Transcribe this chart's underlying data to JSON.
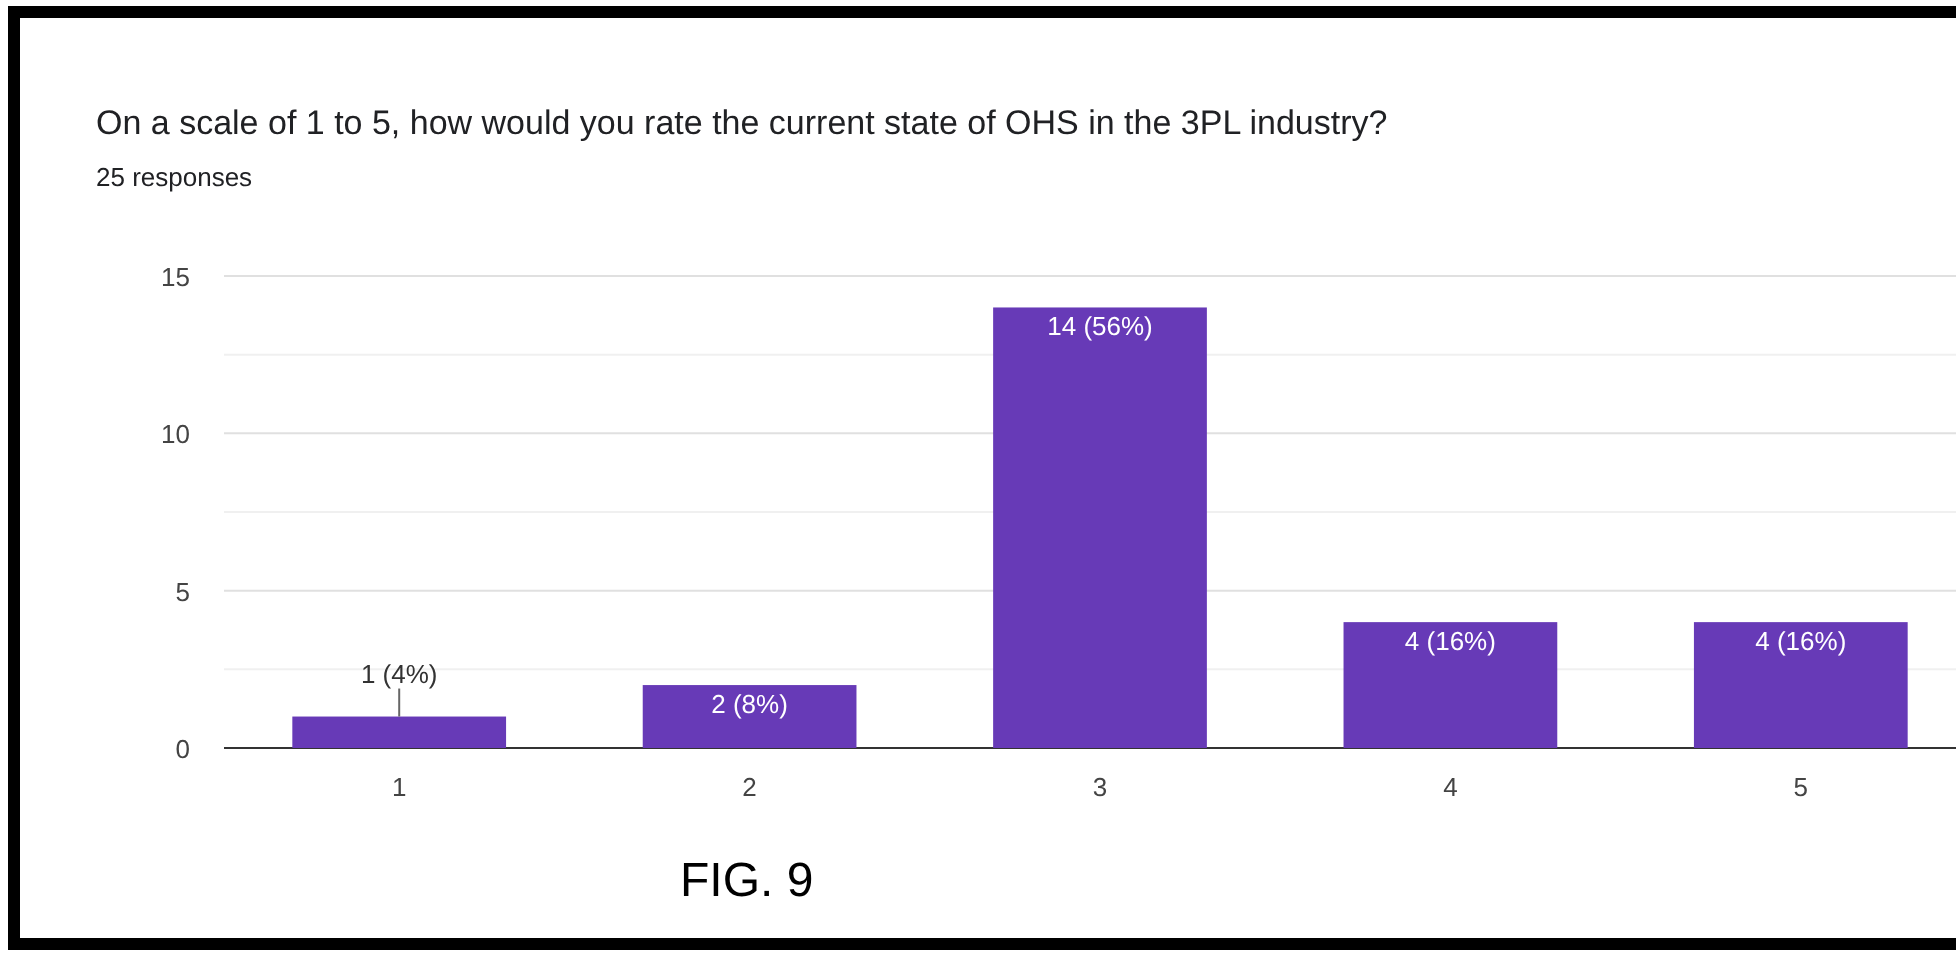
{
  "chart_data": {
    "type": "bar",
    "title": "On a scale of 1 to 5, how would you rate the current state of OHS in the 3PL industry?",
    "subtitle": "25 responses",
    "categories": [
      "1",
      "2",
      "3",
      "4",
      "5"
    ],
    "values": [
      1,
      2,
      14,
      4,
      4
    ],
    "value_labels": [
      "1 (4%)",
      "2 (8%)",
      "14 (56%)",
      "4 (16%)",
      "4 (16%)"
    ],
    "color": "#673ab7",
    "ylim": [
      0,
      15
    ],
    "yticks": [
      0,
      {
        "value": 2.5,
        "label": null
      },
      5,
      {
        "value": 7.5,
        "label": null
      },
      10,
      {
        "value": 12.5,
        "label": null
      },
      15
    ],
    "grid": "y",
    "annotations": [
      "FIG. 9"
    ]
  }
}
